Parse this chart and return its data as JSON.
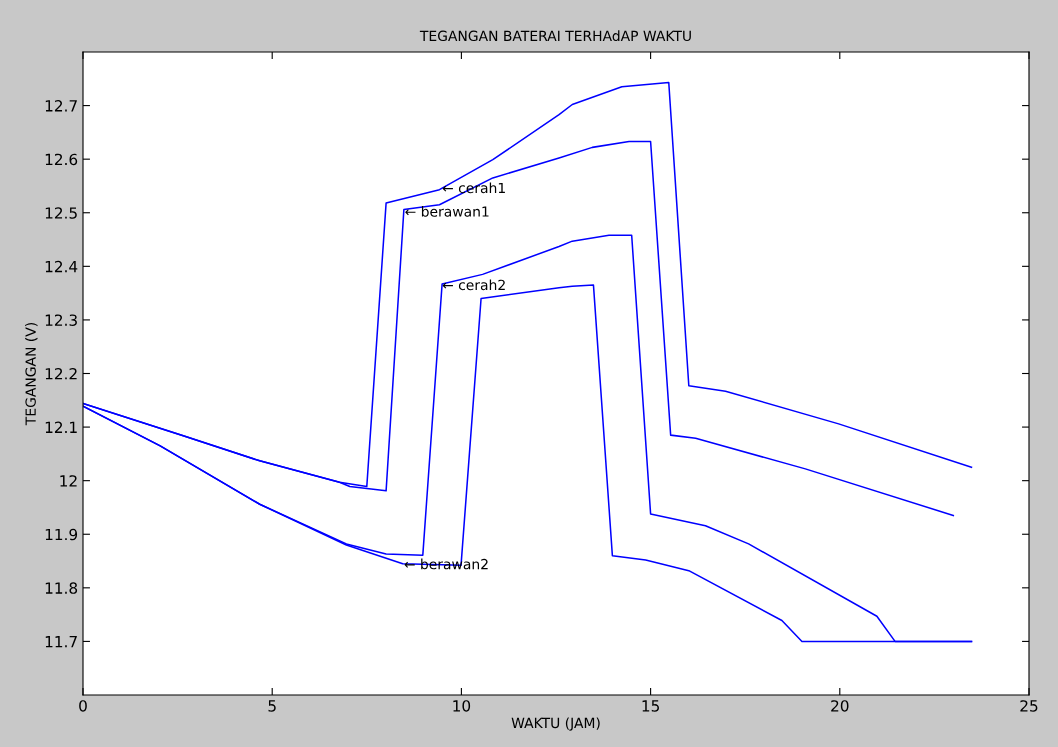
{
  "chart_data": {
    "type": "line",
    "title": "TEGANGAN BATERAI TERHAdAP WAKTU",
    "xlabel": "WAKTU (JAM)",
    "ylabel": "TEGANGAN (V)",
    "xlim": [
      0,
      25
    ],
    "xticks": [
      0,
      5,
      10,
      15,
      20,
      25
    ],
    "ylim": [
      11.6,
      12.8
    ],
    "yticks": [
      11.7,
      11.8,
      11.9,
      12,
      12.1,
      12.2,
      12.3,
      12.4,
      12.5,
      12.6,
      12.7
    ],
    "grid": false,
    "legend": false,
    "marker": "none",
    "line_style": "solid",
    "series": [
      {
        "color": "#0000ff",
        "x": [
          0,
          2.65,
          4.67,
          6.78,
          7.5,
          8.01,
          9.42,
          10.83,
          12.58,
          12.93,
          14.24,
          15.48,
          16.01,
          16.98,
          19.97,
          23.48
        ],
        "values": [
          12.144,
          12.084,
          12.037,
          11.997,
          11.989,
          12.518,
          12.543,
          12.599,
          12.683,
          12.702,
          12.735,
          12.743,
          12.177,
          12.167,
          12.106,
          12.025
        ]
      },
      {
        "color": "#0000ff",
        "x": [
          0,
          2.65,
          4.67,
          6.78,
          7.05,
          8.01,
          8.48,
          9.42,
          10.83,
          12.58,
          13.46,
          14.43,
          15.0,
          15.53,
          16.19,
          19.09,
          23.0
        ],
        "values": [
          12.144,
          12.084,
          12.037,
          11.997,
          11.989,
          11.981,
          12.506,
          12.515,
          12.565,
          12.602,
          12.622,
          12.633,
          12.633,
          12.085,
          12.079,
          12.022,
          11.935
        ]
      },
      {
        "color": "#0000ff",
        "x": [
          0,
          2.04,
          4.67,
          6.96,
          8.01,
          8.98,
          9.49,
          10.56,
          12.58,
          12.93,
          13.9,
          14.5,
          15.0,
          16.45,
          17.59,
          20.98,
          21.46,
          23.48
        ],
        "values": [
          12.139,
          12.065,
          11.956,
          11.882,
          11.863,
          11.861,
          12.367,
          12.385,
          12.437,
          12.447,
          12.458,
          12.458,
          11.938,
          11.916,
          11.882,
          11.747,
          11.7,
          11.7
        ]
      },
      {
        "color": "#0000ff",
        "x": [
          0,
          2.04,
          4.67,
          6.96,
          8.45,
          9.99,
          10.52,
          12.58,
          12.93,
          13.49,
          13.99,
          14.87,
          16.01,
          18.47,
          19.0,
          23.48
        ],
        "values": [
          12.139,
          12.065,
          11.956,
          11.88,
          11.845,
          11.842,
          12.34,
          12.36,
          12.363,
          12.365,
          11.86,
          11.852,
          11.832,
          11.739,
          11.7,
          11.7
        ]
      }
    ],
    "annotations": [
      {
        "text": "← cerah1",
        "x": 9.49,
        "y": 12.544
      },
      {
        "text": "← berawan1",
        "x": 8.5,
        "y": 12.5
      },
      {
        "text": "← cerah2",
        "x": 9.49,
        "y": 12.363
      },
      {
        "text": "← berawan2",
        "x": 8.48,
        "y": 11.842
      }
    ]
  }
}
